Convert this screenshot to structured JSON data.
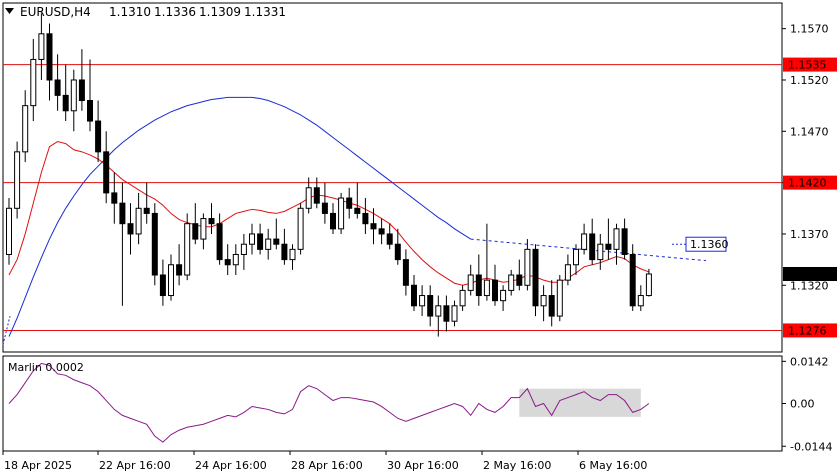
{
  "header": {
    "symbol": "EURUSD,H4",
    "open": "1.1310",
    "high": "1.1336",
    "low": "1.1309",
    "close": "1.1331"
  },
  "colors": {
    "bull": "#ffffff",
    "bear": "#000000",
    "ma_fast": "#e01010",
    "ma_slow": "#1a2bd6",
    "level_line": "#e01010",
    "level_label_bg": "#ff0000",
    "marlin": "#8a1a8a",
    "box_fill": "#d8d8d8"
  },
  "chart_data": [
    {
      "type": "candlestick",
      "title": "",
      "price_axis_ticks": [
        "1.1570",
        "1.1520",
        "1.1470",
        "1.1420",
        "1.1370",
        "1.1320"
      ],
      "time_axis_ticks": [
        "18 Apr 2025",
        "22 Apr 16:00",
        "24 Apr 16:00",
        "28 Apr 16:00",
        "30 Apr 16:00",
        "2 May 16:00",
        "6 May 16:00"
      ],
      "ylim": [
        1.1255,
        1.1595
      ],
      "levels": [
        {
          "label": "1.1535",
          "value": 1.1535
        },
        {
          "label": "1.1420",
          "value": 1.142
        },
        {
          "label": "1.1276",
          "value": 1.1276
        }
      ],
      "target": {
        "label": "1.1360",
        "value": 1.136
      },
      "current": {
        "label": "1.1331",
        "value": 1.1331
      },
      "candles": [
        [
          1.135,
          1.1405,
          1.134,
          1.1395
        ],
        [
          1.1395,
          1.146,
          1.1385,
          1.145
        ],
        [
          1.145,
          1.151,
          1.144,
          1.1495
        ],
        [
          1.1495,
          1.156,
          1.148,
          1.154
        ],
        [
          1.154,
          1.1585,
          1.152,
          1.1565
        ],
        [
          1.1565,
          1.1575,
          1.15,
          1.152
        ],
        [
          1.152,
          1.1545,
          1.149,
          1.1505
        ],
        [
          1.1505,
          1.1535,
          1.148,
          1.149
        ],
        [
          1.149,
          1.153,
          1.147,
          1.152
        ],
        [
          1.152,
          1.155,
          1.149,
          1.15
        ],
        [
          1.15,
          1.154,
          1.147,
          1.148
        ],
        [
          1.148,
          1.15,
          1.144,
          1.145
        ],
        [
          1.145,
          1.147,
          1.14,
          1.141
        ],
        [
          1.141,
          1.143,
          1.138,
          1.14
        ],
        [
          1.14,
          1.142,
          1.13,
          1.138
        ],
        [
          1.138,
          1.14,
          1.135,
          1.137
        ],
        [
          1.137,
          1.141,
          1.136,
          1.1395
        ],
        [
          1.1395,
          1.142,
          1.138,
          1.139
        ],
        [
          1.139,
          1.14,
          1.132,
          1.133
        ],
        [
          1.133,
          1.1345,
          1.13,
          1.131
        ],
        [
          1.131,
          1.135,
          1.1305,
          1.134
        ],
        [
          1.134,
          1.136,
          1.132,
          1.133
        ],
        [
          1.133,
          1.139,
          1.1325,
          1.138
        ],
        [
          1.138,
          1.14,
          1.136,
          1.1365
        ],
        [
          1.1365,
          1.139,
          1.1355,
          1.1385
        ],
        [
          1.1385,
          1.14,
          1.137,
          1.138
        ],
        [
          1.138,
          1.139,
          1.134,
          1.1345
        ],
        [
          1.1345,
          1.136,
          1.133,
          1.134
        ],
        [
          1.134,
          1.136,
          1.133,
          1.135
        ],
        [
          1.135,
          1.137,
          1.1335,
          1.136
        ],
        [
          1.136,
          1.138,
          1.135,
          1.137
        ],
        [
          1.137,
          1.138,
          1.135,
          1.1355
        ],
        [
          1.1355,
          1.1375,
          1.1345,
          1.1365
        ],
        [
          1.1365,
          1.1385,
          1.1355,
          1.136
        ],
        [
          1.136,
          1.1375,
          1.134,
          1.1345
        ],
        [
          1.1345,
          1.136,
          1.1335,
          1.1355
        ],
        [
          1.1355,
          1.14,
          1.135,
          1.1395
        ],
        [
          1.1395,
          1.1425,
          1.139,
          1.1415
        ],
        [
          1.1415,
          1.1425,
          1.1395,
          1.14
        ],
        [
          1.14,
          1.142,
          1.138,
          1.139
        ],
        [
          1.139,
          1.14,
          1.137,
          1.1375
        ],
        [
          1.1375,
          1.141,
          1.137,
          1.1405
        ],
        [
          1.1405,
          1.1415,
          1.1385,
          1.1395
        ],
        [
          1.1395,
          1.142,
          1.1385,
          1.139
        ],
        [
          1.139,
          1.1405,
          1.137,
          1.138
        ],
        [
          1.138,
          1.1395,
          1.136,
          1.1375
        ],
        [
          1.1375,
          1.1385,
          1.136,
          1.137
        ],
        [
          1.137,
          1.138,
          1.1355,
          1.136
        ],
        [
          1.136,
          1.1375,
          1.134,
          1.1345
        ],
        [
          1.1345,
          1.1355,
          1.131,
          1.132
        ],
        [
          1.132,
          1.133,
          1.1295,
          1.13
        ],
        [
          1.13,
          1.132,
          1.129,
          1.131
        ],
        [
          1.131,
          1.132,
          1.128,
          1.129
        ],
        [
          1.129,
          1.131,
          1.127,
          1.13
        ],
        [
          1.13,
          1.131,
          1.1275,
          1.1285
        ],
        [
          1.1285,
          1.1305,
          1.128,
          1.13
        ],
        [
          1.13,
          1.132,
          1.1295,
          1.1315
        ],
        [
          1.1315,
          1.134,
          1.131,
          1.133
        ],
        [
          1.133,
          1.135,
          1.13,
          1.131
        ],
        [
          1.131,
          1.138,
          1.1305,
          1.1325
        ],
        [
          1.1325,
          1.134,
          1.13,
          1.1305
        ],
        [
          1.1305,
          1.132,
          1.1295,
          1.1315
        ],
        [
          1.1315,
          1.1335,
          1.131,
          1.133
        ],
        [
          1.133,
          1.1345,
          1.1315,
          1.132
        ],
        [
          1.132,
          1.1365,
          1.1315,
          1.1355
        ],
        [
          1.1355,
          1.136,
          1.129,
          1.13
        ],
        [
          1.13,
          1.132,
          1.1285,
          1.131
        ],
        [
          1.131,
          1.1325,
          1.128,
          1.129
        ],
        [
          1.129,
          1.133,
          1.1285,
          1.1325
        ],
        [
          1.1325,
          1.135,
          1.132,
          1.134
        ],
        [
          1.134,
          1.136,
          1.133,
          1.1355
        ],
        [
          1.1355,
          1.138,
          1.135,
          1.137
        ],
        [
          1.137,
          1.1385,
          1.134,
          1.1345
        ],
        [
          1.1345,
          1.137,
          1.1335,
          1.136
        ],
        [
          1.136,
          1.1385,
          1.1345,
          1.1355
        ],
        [
          1.1355,
          1.138,
          1.134,
          1.1375
        ],
        [
          1.1375,
          1.1385,
          1.1345,
          1.135
        ],
        [
          1.135,
          1.136,
          1.1295,
          1.13
        ],
        [
          1.13,
          1.132,
          1.1295,
          1.131
        ],
        [
          1.131,
          1.1336,
          1.1309,
          1.1331
        ]
      ],
      "series": [
        {
          "values": [
            1.133,
            1.1345,
            1.137,
            1.14,
            1.143,
            1.1455,
            1.146,
            1.1458,
            1.1452,
            1.145,
            1.1447,
            1.1443,
            1.1437,
            1.143,
            1.1423,
            1.1418,
            1.1413,
            1.1408,
            1.1404,
            1.1398,
            1.139,
            1.1384,
            1.1381,
            1.1379,
            1.1377,
            1.1377,
            1.138,
            1.1385,
            1.139,
            1.1392,
            1.1394,
            1.1393,
            1.1391,
            1.139,
            1.1392,
            1.1396,
            1.14,
            1.1405,
            1.1408,
            1.1407,
            1.1405,
            1.1403,
            1.14,
            1.1398,
            1.1394,
            1.139,
            1.1385,
            1.138,
            1.1372,
            1.1362,
            1.1353,
            1.1345,
            1.1338,
            1.1332,
            1.1327,
            1.1322,
            1.132,
            1.1322,
            1.1325,
            1.1327,
            1.1325,
            1.1323,
            1.1324,
            1.1326,
            1.133,
            1.1328,
            1.1325,
            1.1323,
            1.1323,
            1.1327,
            1.1332,
            1.1338,
            1.134,
            1.1342,
            1.1345,
            1.1348,
            1.1346,
            1.134,
            1.1336,
            1.1333
          ]
        },
        {
          "values": [
            1.127,
            1.1288,
            1.1308,
            1.1328,
            1.1347,
            1.1365,
            1.1381,
            1.1395,
            1.1407,
            1.1418,
            1.1428,
            1.1436,
            1.1444,
            1.1452,
            1.1459,
            1.1465,
            1.1471,
            1.1476,
            1.1481,
            1.1485,
            1.1489,
            1.1492,
            1.1495,
            1.1497,
            1.1499,
            1.1501,
            1.1502,
            1.1503,
            1.1503,
            1.1503,
            1.1503,
            1.1502,
            1.15,
            1.1497,
            1.1494,
            1.149,
            1.1486,
            1.1481,
            1.1476,
            1.147,
            1.1464,
            1.1458,
            1.1452,
            1.1446,
            1.144,
            1.1434,
            1.1428,
            1.1422,
            1.1416,
            1.141,
            1.1404,
            1.1398,
            1.1392,
            1.1386,
            1.1381,
            1.1375,
            1.137,
            1.1365
          ]
        }
      ]
    },
    {
      "type": "line",
      "title": "Marlin 0.0002",
      "ylim": [
        -0.016,
        0.016
      ],
      "tick_labels": [
        "0.0142",
        "0.00",
        "-0.0144"
      ],
      "highlight": {
        "x_from": 63,
        "x_to": 78,
        "y_from": -0.0045,
        "y_to": 0.005
      },
      "series": [
        {
          "values": [
            0.0,
            0.003,
            0.007,
            0.011,
            0.0135,
            0.0128,
            0.01,
            0.0095,
            0.008,
            0.007,
            0.006,
            0.004,
            0.001,
            -0.002,
            -0.004,
            -0.005,
            -0.006,
            -0.007,
            -0.011,
            -0.013,
            -0.0105,
            -0.009,
            -0.008,
            -0.0075,
            -0.007,
            -0.006,
            -0.005,
            -0.004,
            -0.0045,
            -0.003,
            -0.001,
            -0.0015,
            -0.002,
            -0.003,
            -0.0035,
            -0.002,
            0.004,
            0.006,
            0.005,
            0.003,
            0.001,
            0.002,
            0.002,
            0.0015,
            0.001,
            0.0005,
            -0.001,
            -0.003,
            -0.005,
            -0.006,
            -0.005,
            -0.004,
            -0.003,
            -0.002,
            -0.001,
            0.0,
            -0.001,
            -0.004,
            0.0,
            -0.002,
            -0.003,
            -0.001,
            0.002,
            0.002,
            0.005,
            -0.001,
            0.0,
            -0.004,
            0.001,
            0.002,
            0.003,
            0.004,
            0.002,
            0.001,
            0.003,
            0.003,
            0.001,
            -0.003,
            -0.002,
            0.0
          ]
        }
      ]
    }
  ]
}
